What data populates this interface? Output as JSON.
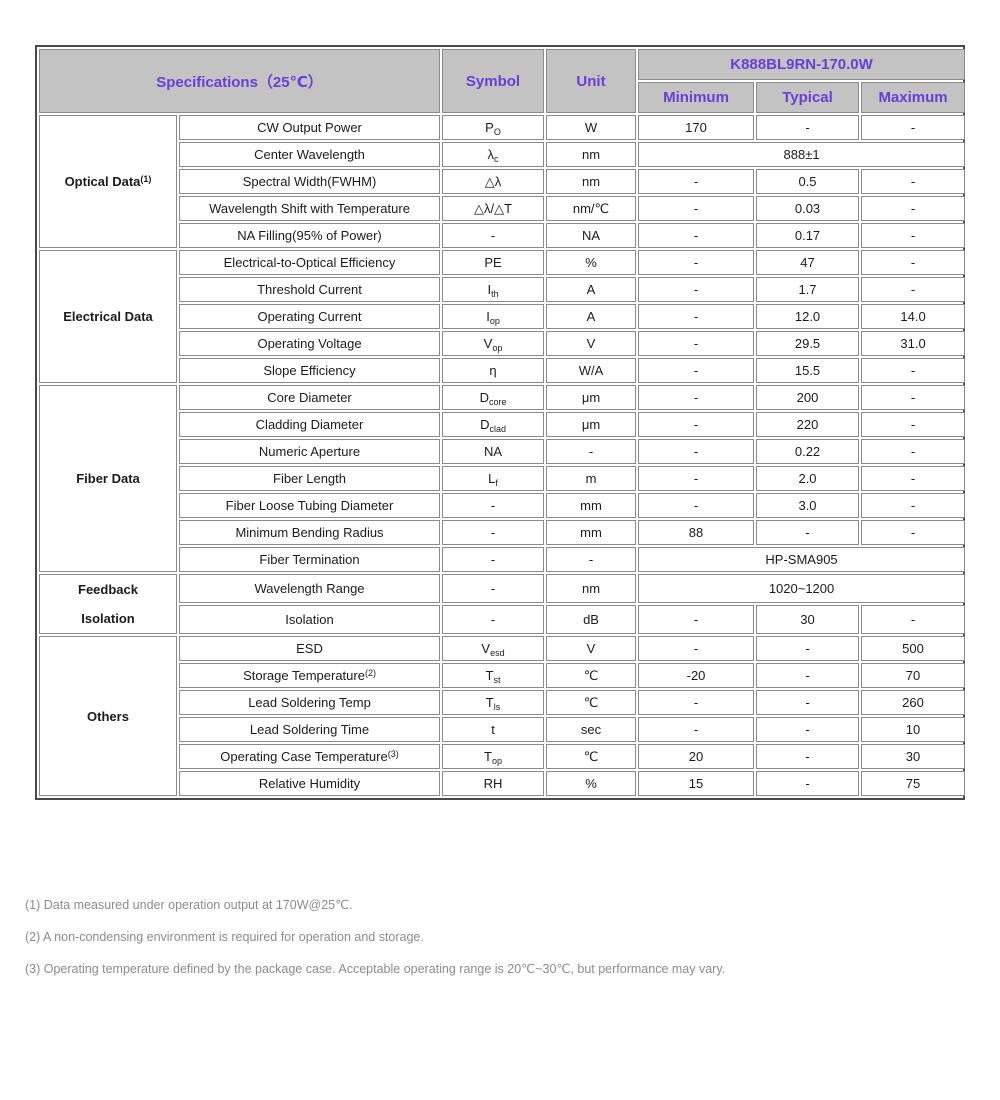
{
  "table": {
    "colors": {
      "header_bg": "#c3c3c3",
      "header_text": "#6b3fd6",
      "border": "#8a8a8a",
      "outer_border": "#4a4a4a",
      "body_text": "#1c1c1c",
      "footnote_text": "#8c8c8c",
      "page_bg": "#ffffff"
    },
    "header": {
      "specifications_label": "Specifications（25℃）",
      "symbol_label": "Symbol",
      "unit_label": "Unit",
      "model_label": "K888BL9RN-170.0W",
      "min_label": "Minimum",
      "typ_label": "Typical",
      "max_label": "Maximum"
    },
    "sections": [
      {
        "category_lines": [
          "Optical Data"
        ],
        "category_sup": "(1)",
        "rows": [
          {
            "parameter": "CW Output Power",
            "symbol": "P",
            "symbol_sub": "O",
            "unit": "W",
            "min": "170",
            "typ": "-",
            "max": "-"
          },
          {
            "parameter": "Center Wavelength",
            "symbol": "λ",
            "symbol_sub": "c",
            "unit": "nm",
            "span": "888±1"
          },
          {
            "parameter": "Spectral Width(FWHM)",
            "symbol": "△λ",
            "unit": "nm",
            "min": "-",
            "typ": "0.5",
            "max": "-"
          },
          {
            "parameter": "Wavelength Shift with Temperature",
            "symbol": "△λ/△T",
            "unit": "nm/℃",
            "min": "-",
            "typ": "0.03",
            "max": "-"
          },
          {
            "parameter": "NA Filling(95% of Power)",
            "symbol": "-",
            "unit": "NA",
            "min": "-",
            "typ": "0.17",
            "max": "-"
          }
        ]
      },
      {
        "category_lines": [
          "Electrical Data"
        ],
        "rows": [
          {
            "parameter": "Electrical-to-Optical Efficiency",
            "symbol": "PE",
            "unit": "%",
            "min": "-",
            "typ": "47",
            "max": "-"
          },
          {
            "parameter": "Threshold Current",
            "symbol": "I",
            "symbol_sub": "th",
            "unit": "A",
            "min": "-",
            "typ": "1.7",
            "max": "-"
          },
          {
            "parameter": "Operating Current",
            "symbol": "I",
            "symbol_sub": "op",
            "unit": "A",
            "min": "-",
            "typ": "12.0",
            "max": "14.0"
          },
          {
            "parameter": "Operating Voltage",
            "symbol": "V",
            "symbol_sub": "op",
            "unit": "V",
            "min": "-",
            "typ": "29.5",
            "max": "31.0"
          },
          {
            "parameter": "Slope Efficiency",
            "symbol": "η",
            "unit": "W/A",
            "min": "-",
            "typ": "15.5",
            "max": "-"
          }
        ]
      },
      {
        "category_lines": [
          "Fiber Data"
        ],
        "rows": [
          {
            "parameter": "Core Diameter",
            "symbol": "D",
            "symbol_sub": "core",
            "unit": "μm",
            "min": "-",
            "typ": "200",
            "max": "-"
          },
          {
            "parameter": "Cladding Diameter",
            "symbol": "D",
            "symbol_sub": "clad",
            "unit": "μm",
            "min": "-",
            "typ": "220",
            "max": "-"
          },
          {
            "parameter": "Numeric Aperture",
            "symbol": "NA",
            "unit": "-",
            "min": "-",
            "typ": "0.22",
            "max": "-"
          },
          {
            "parameter": "Fiber Length",
            "symbol": "L",
            "symbol_sub": "f",
            "unit": "m",
            "min": "-",
            "typ": "2.0",
            "max": "-"
          },
          {
            "parameter": "Fiber Loose Tubing Diameter",
            "symbol": "-",
            "unit": "mm",
            "min": "-",
            "typ": "3.0",
            "max": "-"
          },
          {
            "parameter": "Minimum Bending Radius",
            "symbol": "-",
            "unit": "mm",
            "min": "88",
            "typ": "-",
            "max": "-"
          },
          {
            "parameter": "Fiber Termination",
            "symbol": "-",
            "unit": "-",
            "span": "HP-SMA905"
          }
        ]
      },
      {
        "category_lines": [
          "Feedback",
          "Isolation"
        ],
        "rows": [
          {
            "parameter": "Wavelength Range",
            "symbol": "-",
            "unit": "nm",
            "span": "1020~1200"
          },
          {
            "parameter": "Isolation",
            "symbol": "-",
            "unit": "dB",
            "min": "-",
            "typ": "30",
            "max": "-"
          }
        ]
      },
      {
        "category_lines": [
          "Others"
        ],
        "rows": [
          {
            "parameter": "ESD",
            "symbol": "V",
            "symbol_sub": "esd",
            "unit": "V",
            "min": "-",
            "typ": "-",
            "max": "500"
          },
          {
            "parameter": "Storage Temperature",
            "parameter_sup": "(2)",
            "symbol": "T",
            "symbol_sub": "st",
            "unit": "℃",
            "min": "-20",
            "typ": "-",
            "max": "70"
          },
          {
            "parameter": "Lead Soldering Temp",
            "symbol": "T",
            "symbol_sub": "ls",
            "unit": "℃",
            "min": "-",
            "typ": "-",
            "max": "260"
          },
          {
            "parameter": "Lead Soldering Time",
            "symbol": "t",
            "unit": "sec",
            "min": "-",
            "typ": "-",
            "max": "10"
          },
          {
            "parameter": "Operating Case Temperature",
            "parameter_sup": "(3)",
            "symbol": "T",
            "symbol_sub": "op",
            "unit": "℃",
            "min": "20",
            "typ": "-",
            "max": "30"
          },
          {
            "parameter": "Relative Humidity",
            "symbol": "RH",
            "unit": "%",
            "min": "15",
            "typ": "-",
            "max": "75"
          }
        ]
      }
    ]
  },
  "footnotes": [
    "(1) Data measured under operation output at 170W@25℃.",
    "(2) A non-condensing environment is required for operation and storage.",
    "(3) Operating temperature defined by the package case. Acceptable operating range is 20℃~30℃, but performance may vary."
  ]
}
